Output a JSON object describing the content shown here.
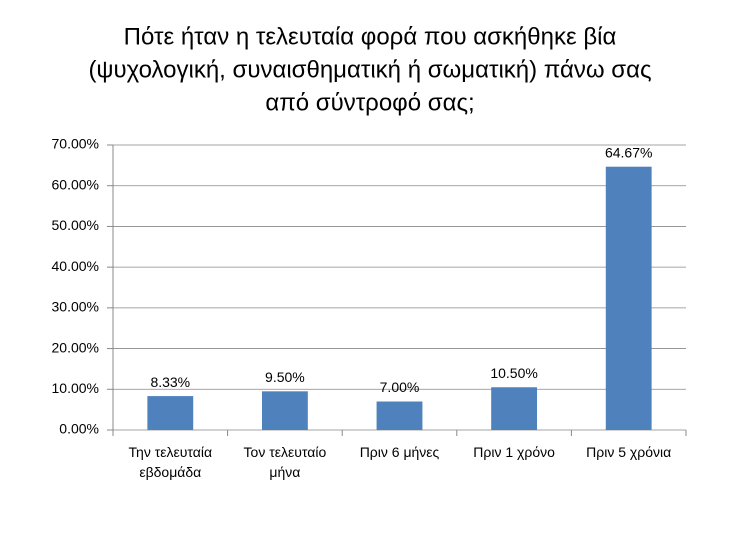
{
  "chart_data": {
    "type": "bar",
    "title": [
      "Πότε ήταν η τελευταία φορά που ασκήθηκε βία",
      "(ψυχολογική, συναισθηματική ή σωματική) πάνω σας",
      "από σύντροφό σας;"
    ],
    "categories": [
      "Την τελευταία εβδομάδα",
      "Τον τελευταίο μήνα",
      "Πριν 6 μήνες",
      "Πριν 1 χρόνο",
      "Πριν 5 χρόνια"
    ],
    "values": [
      8.33,
      9.5,
      7.0,
      10.5,
      64.67
    ],
    "value_labels": [
      "8.33%",
      "9.50%",
      "7.00%",
      "10.50%",
      "64.67%"
    ],
    "color": "#4f81bd",
    "ylim": [
      0,
      70
    ],
    "yticks": [
      {
        "value": 0,
        "label": "0.00%"
      },
      {
        "value": 10,
        "label": "10.00%"
      },
      {
        "value": 20,
        "label": "20.00%"
      },
      {
        "value": 30,
        "label": "30.00%"
      },
      {
        "value": 40,
        "label": "40.00%"
      },
      {
        "value": 50,
        "label": "50.00%"
      },
      {
        "value": 60,
        "label": "60.00%"
      },
      {
        "value": 70,
        "label": "70.00%"
      }
    ],
    "grid": true
  }
}
